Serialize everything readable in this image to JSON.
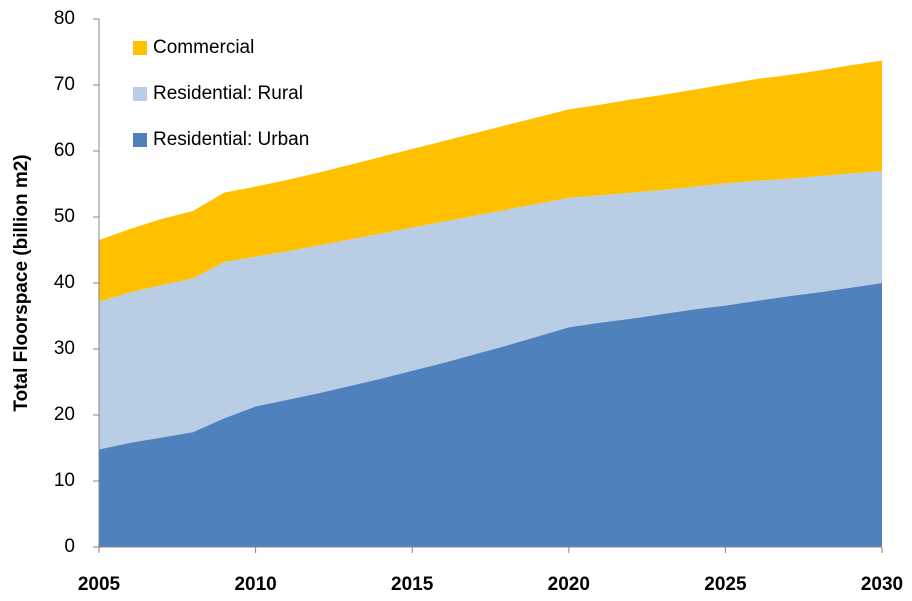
{
  "chart_data": {
    "type": "area",
    "stacked": true,
    "y_label": "Total Floorspace (billion m2)",
    "x": [
      2005,
      2006,
      2007,
      2008,
      2009,
      2010,
      2011,
      2012,
      2013,
      2014,
      2015,
      2016,
      2017,
      2018,
      2019,
      2020,
      2021,
      2022,
      2023,
      2024,
      2025,
      2026,
      2027,
      2028,
      2029,
      2030
    ],
    "series": [
      {
        "name": "Residential: Urban",
        "color": "#4f81bd",
        "values": [
          14.8,
          15.8,
          16.6,
          17.4,
          19.5,
          21.3,
          22.3,
          23.3,
          24.4,
          25.5,
          26.7,
          27.9,
          29.2,
          30.5,
          31.9,
          33.3,
          34.0,
          34.6,
          35.3,
          36.0,
          36.6,
          37.3,
          38.0,
          38.6,
          39.3,
          40.0
        ]
      },
      {
        "name": "Residential: Rural",
        "color": "#b9cde5",
        "values": [
          22.4,
          22.8,
          23.1,
          23.3,
          23.7,
          22.7,
          22.5,
          22.4,
          22.2,
          22.0,
          21.7,
          21.4,
          21.0,
          20.6,
          20.1,
          19.6,
          19.3,
          19.1,
          18.8,
          18.6,
          18.5,
          18.2,
          17.8,
          17.6,
          17.3,
          17.0
        ]
      },
      {
        "name": "Commercial",
        "color": "#ffc000",
        "values": [
          9.3,
          9.6,
          10.0,
          10.2,
          10.5,
          10.6,
          10.8,
          11.0,
          11.3,
          11.6,
          11.9,
          12.2,
          12.5,
          12.8,
          13.1,
          13.4,
          13.7,
          14.1,
          14.4,
          14.7,
          15.0,
          15.4,
          15.7,
          16.0,
          16.4,
          16.7
        ]
      }
    ],
    "xlim": [
      2005,
      2030
    ],
    "xticks": [
      2005,
      2010,
      2015,
      2020,
      2025,
      2030
    ],
    "ylim": [
      0,
      80
    ],
    "yticks": [
      0,
      10,
      20,
      30,
      40,
      50,
      60,
      70,
      80
    ],
    "legend": "upper left",
    "grid": false
  }
}
